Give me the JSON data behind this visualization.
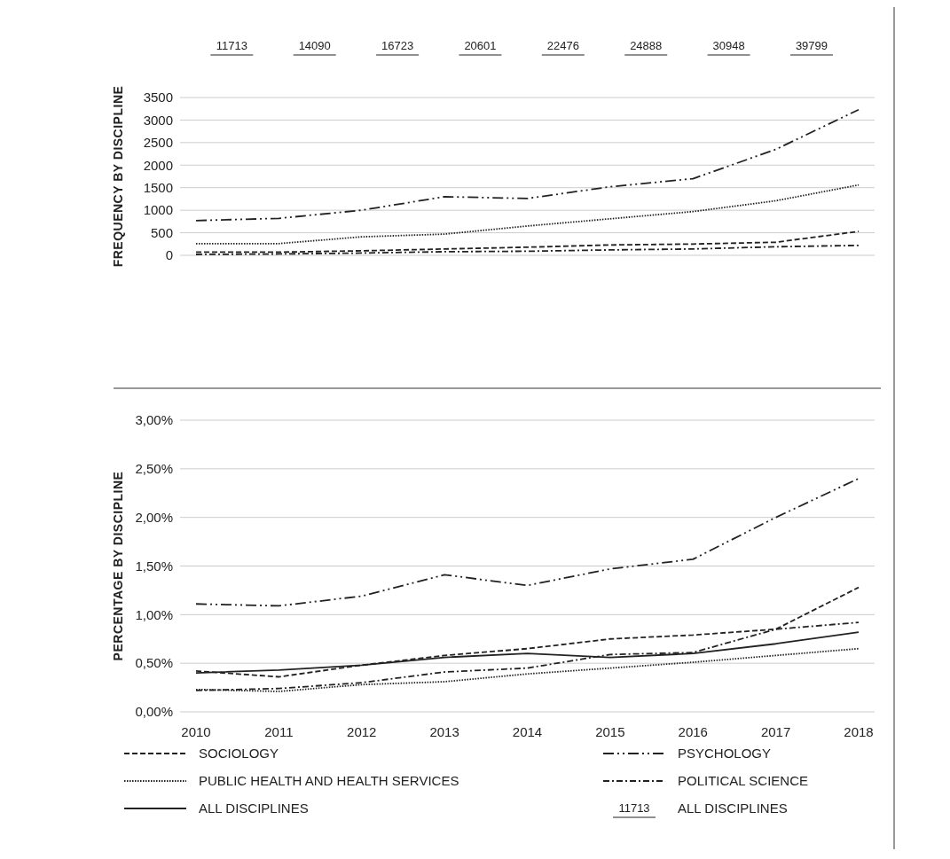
{
  "chart_data": [
    {
      "type": "other",
      "categories": [
        null,
        null,
        null,
        null,
        null,
        null,
        null,
        null
      ],
      "data_labels": true,
      "annotations": [
        "11713"
      ],
      "series": [
        {
          "name": "ALL DISCIPLINES",
          "color": "#222222",
          "values": [
            11713,
            14090,
            16723,
            20601,
            22476,
            24888,
            30948,
            39799
          ]
        }
      ]
    },
    {
      "type": "line",
      "ylabel": "FREQUENCY BY DISCIPLINE",
      "categories": [
        "2010",
        "2011",
        "2012",
        "2013",
        "2014",
        "2015",
        "2016",
        "2017",
        "2018"
      ],
      "tick_labels": "y",
      "grid": "y",
      "legend": "bottom",
      "ylim": [
        0,
        3500
      ],
      "yticks": [
        0,
        500,
        1000,
        1500,
        2000,
        2500,
        3000,
        3500
      ],
      "series": [
        {
          "name": "SOCIOLOGY",
          "color": "#222222",
          "line_style": "dashed",
          "values": [
            70,
            70,
            100,
            140,
            180,
            230,
            250,
            290,
            530
          ]
        },
        {
          "name": "PUBLIC HEALTH AND HEALTH SERVICES",
          "color": "#222222",
          "line_style": "dotted",
          "values": [
            260,
            260,
            410,
            470,
            650,
            810,
            970,
            1210,
            1560
          ]
        },
        {
          "name": "PSYCHOLOGY",
          "color": "#222222",
          "line_style": "dashdotdot",
          "values": [
            770,
            820,
            1000,
            1300,
            1260,
            1520,
            1700,
            2350,
            3230
          ]
        },
        {
          "name": "POLITICAL SCIENCE",
          "color": "#222222",
          "line_style": "dashdot",
          "values": [
            20,
            30,
            50,
            80,
            90,
            120,
            140,
            190,
            220
          ]
        }
      ]
    },
    {
      "type": "line",
      "ylabel": "PERCENTAGE BY DISCIPLINE",
      "categories": [
        "2010",
        "2011",
        "2012",
        "2013",
        "2014",
        "2015",
        "2016",
        "2017",
        "2018"
      ],
      "grid": "y",
      "legend": "bottom",
      "ylim": [
        0,
        3
      ],
      "yticks": [
        {
          "value": 0,
          "label": "0,00%"
        },
        {
          "value": 0.5,
          "label": "0,50%"
        },
        {
          "value": 1,
          "label": "1,00%"
        },
        {
          "value": 1.5,
          "label": "1,50%"
        },
        {
          "value": 2,
          "label": "2,00%"
        },
        {
          "value": 2.5,
          "label": "2,50%"
        },
        {
          "value": 3,
          "label": "3,00%"
        }
      ],
      "series": [
        {
          "name": "SOCIOLOGY",
          "color": "#222222",
          "line_style": "dashed",
          "values": [
            0.42,
            0.36,
            0.48,
            0.58,
            0.65,
            0.75,
            0.79,
            0.85,
            1.28
          ]
        },
        {
          "name": "PUBLIC HEALTH AND HEALTH SERVICES",
          "color": "#222222",
          "line_style": "dotted",
          "values": [
            0.23,
            0.21,
            0.28,
            0.31,
            0.39,
            0.45,
            0.51,
            0.58,
            0.65
          ]
        },
        {
          "name": "ALL DISCIPLINES",
          "color": "#222222",
          "line_style": "solid",
          "values": [
            0.4,
            0.43,
            0.48,
            0.56,
            0.6,
            0.56,
            0.6,
            0.7,
            0.82
          ]
        },
        {
          "name": "PSYCHOLOGY",
          "color": "#222222",
          "line_style": "dashdotdot",
          "values": [
            1.11,
            1.09,
            1.19,
            1.41,
            1.3,
            1.47,
            1.57,
            2.0,
            2.4
          ]
        },
        {
          "name": "POLITICAL SCIENCE",
          "color": "#222222",
          "line_style": "dashdot",
          "values": [
            0.22,
            0.24,
            0.3,
            0.41,
            0.45,
            0.59,
            0.61,
            0.85,
            0.92
          ]
        }
      ]
    }
  ]
}
